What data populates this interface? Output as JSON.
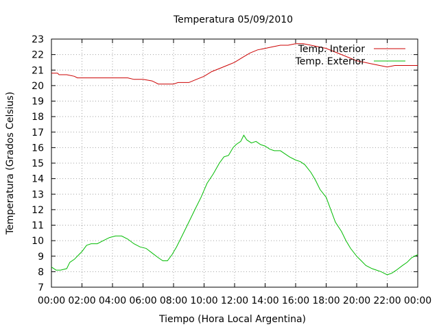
{
  "chart_data": {
    "type": "line",
    "title": "Temperatura 05/09/2010",
    "xlabel": "Tiempo (Hora Local Argentina)",
    "ylabel": "Temperatura (Grados Celsius)",
    "xlim": [
      0,
      24
    ],
    "ylim": [
      7,
      23
    ],
    "x_ticks": [
      {
        "value": 0,
        "label": "00:00"
      },
      {
        "value": 2,
        "label": "02:00"
      },
      {
        "value": 4,
        "label": "04:00"
      },
      {
        "value": 6,
        "label": "06:00"
      },
      {
        "value": 8,
        "label": "08:00"
      },
      {
        "value": 10,
        "label": "10:00"
      },
      {
        "value": 12,
        "label": "12:00"
      },
      {
        "value": 14,
        "label": "14:00"
      },
      {
        "value": 16,
        "label": "16:00"
      },
      {
        "value": 18,
        "label": "18:00"
      },
      {
        "value": 20,
        "label": "20:00"
      },
      {
        "value": 22,
        "label": "22:00"
      },
      {
        "value": 24,
        "label": "00:00"
      }
    ],
    "y_ticks": [
      7,
      8,
      9,
      10,
      11,
      12,
      13,
      14,
      15,
      16,
      17,
      18,
      19,
      20,
      21,
      22,
      23
    ],
    "grid": true,
    "legend_position": "top-right",
    "series": [
      {
        "name": "Temp. Interior",
        "color": "#cc0000",
        "x": [
          0,
          0.4,
          0.5,
          1,
          1.5,
          1.7,
          2,
          3,
          4,
          5,
          5.4,
          6,
          6.6,
          7,
          7.5,
          8,
          8.3,
          9,
          9.5,
          10,
          10.5,
          11,
          11.5,
          12,
          12.5,
          13,
          13.5,
          14,
          14.5,
          15,
          15.5,
          16,
          16.5,
          17,
          17.5,
          18,
          18.5,
          19,
          19.5,
          20,
          20.5,
          21,
          21.5,
          22,
          22.5,
          23,
          24
        ],
        "y": [
          20.8,
          20.8,
          20.7,
          20.7,
          20.6,
          20.5,
          20.5,
          20.5,
          20.5,
          20.5,
          20.4,
          20.4,
          20.3,
          20.1,
          20.1,
          20.1,
          20.2,
          20.2,
          20.4,
          20.6,
          20.9,
          21.1,
          21.3,
          21.5,
          21.8,
          22.1,
          22.3,
          22.4,
          22.5,
          22.6,
          22.6,
          22.7,
          22.7,
          22.6,
          22.5,
          22.4,
          22.2,
          22.0,
          21.8,
          21.6,
          21.5,
          21.4,
          21.3,
          21.2,
          21.3,
          21.3,
          21.3
        ]
      },
      {
        "name": "Temp. Exterior",
        "color": "#00bb00",
        "x": [
          0,
          0.3,
          0.6,
          1,
          1.2,
          1.5,
          1.8,
          2,
          2.3,
          2.6,
          3,
          3.4,
          3.8,
          4.2,
          4.6,
          5,
          5.4,
          5.8,
          6.2,
          6.6,
          7,
          7.3,
          7.6,
          7.9,
          8.2,
          8.6,
          9,
          9.4,
          9.8,
          10.2,
          10.6,
          11,
          11.3,
          11.6,
          11.9,
          12.1,
          12.4,
          12.6,
          12.8,
          13.1,
          13.4,
          13.7,
          14,
          14.3,
          14.6,
          15,
          15.3,
          15.6,
          16,
          16.3,
          16.6,
          17,
          17.3,
          17.6,
          18,
          18.3,
          18.6,
          19,
          19.3,
          19.6,
          20,
          20.3,
          20.6,
          21,
          21.3,
          21.6,
          22,
          22.3,
          22.6,
          23,
          23.3,
          23.6,
          24
        ],
        "y": [
          8.3,
          8.1,
          8.1,
          8.2,
          8.6,
          8.8,
          9.1,
          9.3,
          9.7,
          9.8,
          9.8,
          10.0,
          10.2,
          10.3,
          10.3,
          10.1,
          9.8,
          9.6,
          9.5,
          9.2,
          8.9,
          8.7,
          8.7,
          9.1,
          9.6,
          10.4,
          11.2,
          12.0,
          12.8,
          13.7,
          14.3,
          15.0,
          15.4,
          15.5,
          16.0,
          16.2,
          16.4,
          16.8,
          16.5,
          16.3,
          16.4,
          16.2,
          16.1,
          15.9,
          15.8,
          15.8,
          15.6,
          15.4,
          15.2,
          15.1,
          14.9,
          14.4,
          13.9,
          13.3,
          12.8,
          12.0,
          11.2,
          10.6,
          10.0,
          9.5,
          9.0,
          8.7,
          8.4,
          8.2,
          8.1,
          8.0,
          7.8,
          7.9,
          8.1,
          8.4,
          8.6,
          8.9,
          9.1
        ]
      }
    ]
  }
}
